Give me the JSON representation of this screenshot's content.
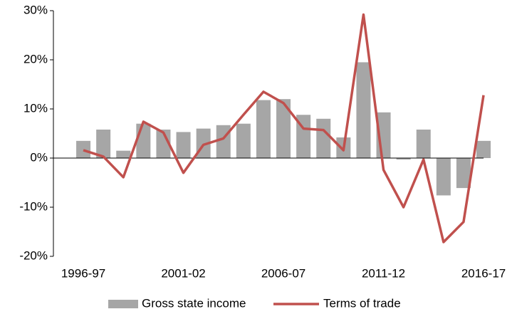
{
  "chart_data": {
    "type": "bar_line",
    "categories": [
      "1996-97",
      null,
      null,
      null,
      null,
      "2001-02",
      null,
      null,
      null,
      null,
      "2006-07",
      null,
      null,
      null,
      null,
      "2011-12",
      null,
      null,
      null,
      null,
      "2016-17"
    ],
    "series": [
      {
        "name": "Gross state income",
        "type": "bar",
        "color": "#a6a6a6",
        "values": [
          3.5,
          5.8,
          1.5,
          7.0,
          5.8,
          5.3,
          6.0,
          6.7,
          7.0,
          11.8,
          12.0,
          8.8,
          8.0,
          4.2,
          19.5,
          9.3,
          -0.3,
          5.8,
          -7.6,
          -6.1,
          3.5
        ]
      },
      {
        "name": "Terms of trade",
        "type": "line",
        "color": "#c0504d",
        "values": [
          1.6,
          0.3,
          -3.9,
          7.4,
          5.2,
          -3.0,
          2.7,
          4.0,
          8.8,
          13.5,
          11.2,
          6.0,
          5.7,
          1.6,
          29.2,
          -2.4,
          -10.0,
          -0.3,
          -17.1,
          -13.0,
          12.8
        ]
      }
    ],
    "ylim": [
      -20,
      30
    ],
    "yticks": [
      {
        "value": -20,
        "label": "-20%"
      },
      {
        "value": -10,
        "label": "-10%"
      },
      {
        "value": 0,
        "label": "0%"
      },
      {
        "value": 10,
        "label": "10%"
      },
      {
        "value": 20,
        "label": "20%"
      },
      {
        "value": 30,
        "label": "30%"
      }
    ],
    "legend": "bottom"
  }
}
